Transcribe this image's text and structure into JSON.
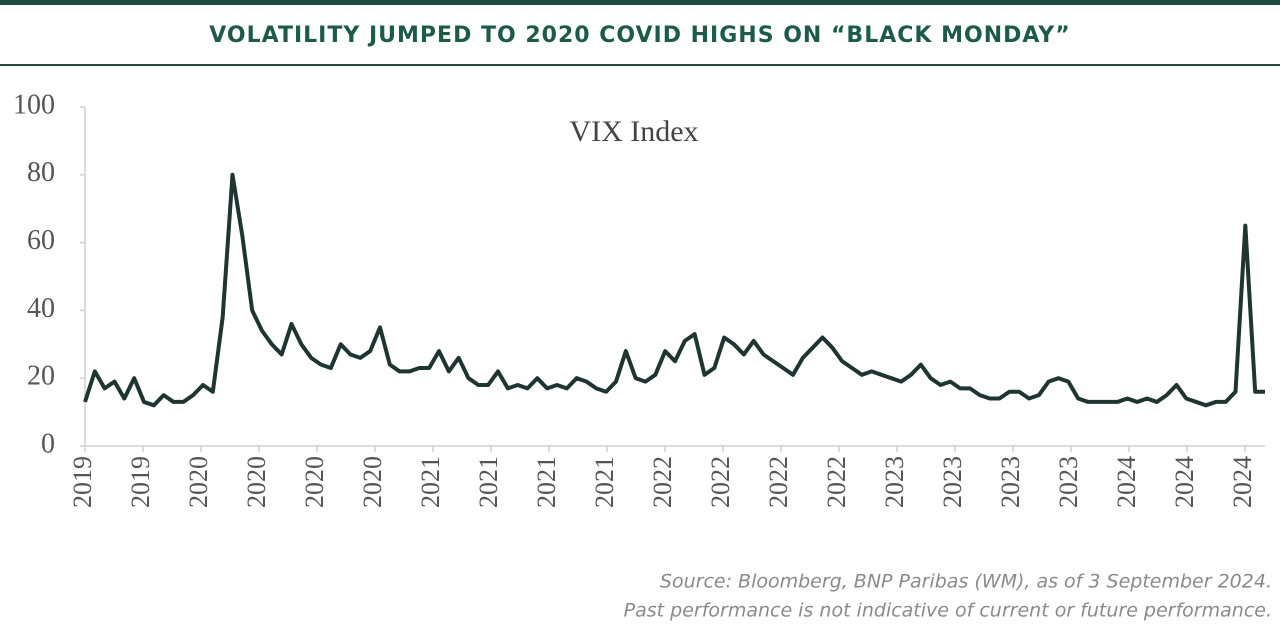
{
  "chart_data": {
    "type": "line",
    "title": "VOLATILITY JUMPED TO 2020 COVID HIGHS ON “BLACK MONDAY”",
    "xtick_labels": [
      "2019",
      "2019",
      "2020",
      "2020",
      "2020",
      "2020",
      "2021",
      "2021",
      "2021",
      "2021",
      "2022",
      "2022",
      "2022",
      "2022",
      "2023",
      "2023",
      "2023",
      "2023",
      "2024",
      "2024",
      "2024"
    ],
    "ylim": [
      0,
      100
    ],
    "yticks": [
      0,
      20,
      40,
      60,
      80,
      100
    ],
    "series": [
      {
        "name": "VIX Index",
        "color": "#1f3530",
        "values": [
          13,
          22,
          17,
          19,
          14,
          20,
          13,
          12,
          15,
          13,
          13,
          15,
          18,
          16,
          38,
          80,
          62,
          40,
          34,
          30,
          27,
          36,
          30,
          26,
          24,
          23,
          30,
          27,
          26,
          28,
          35,
          24,
          22,
          22,
          23,
          23,
          28,
          22,
          26,
          20,
          18,
          18,
          22,
          17,
          18,
          17,
          20,
          17,
          18,
          17,
          20,
          19,
          17,
          16,
          19,
          28,
          20,
          19,
          21,
          28,
          25,
          31,
          33,
          21,
          23,
          32,
          30,
          27,
          31,
          27,
          25,
          23,
          21,
          26,
          29,
          32,
          29,
          25,
          23,
          21,
          22,
          21,
          20,
          19,
          21,
          24,
          20,
          18,
          19,
          17,
          17,
          15,
          14,
          14,
          16,
          16,
          14,
          15,
          19,
          20,
          19,
          14,
          13,
          13,
          13,
          13,
          14,
          13,
          14,
          13,
          15,
          18,
          14,
          13,
          12,
          13,
          13,
          16,
          65,
          16,
          16
        ]
      }
    ],
    "notes": [
      "Source: Bloomberg, BNP Paribas (WM), as of 3 September 2024.",
      "Past performance is not indicative of current or future performance."
    ]
  }
}
